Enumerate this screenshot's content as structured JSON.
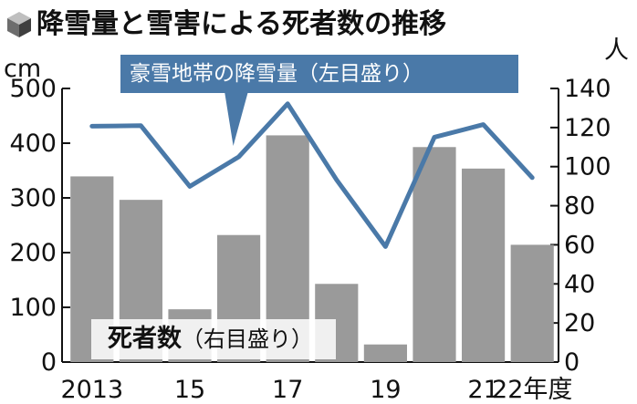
{
  "title": "降雪量と雪害による死者数の推移",
  "colors": {
    "bar": "#9a9a9a",
    "line": "#4a79a8",
    "callout_bg": "#4a79a8",
    "axis": "#111111",
    "text": "#111111"
  },
  "chart_data": {
    "type": "bar+line",
    "left_axis": {
      "unit": "cm",
      "ylim": [
        0,
        500
      ],
      "ticks": [
        "0",
        "100",
        "200",
        "300",
        "400",
        "500"
      ]
    },
    "right_axis": {
      "unit": "人",
      "ylim": [
        0,
        140
      ],
      "ticks": [
        "0",
        "20",
        "40",
        "60",
        "80",
        "100",
        "120",
        "140"
      ]
    },
    "x": [
      2013,
      2014,
      2015,
      2016,
      2017,
      2018,
      2019,
      2020,
      2021,
      2022
    ],
    "x_tick_labels": [
      "2013",
      "",
      "15",
      "",
      "17",
      "",
      "19",
      "",
      "21",
      "22年度"
    ],
    "series": [
      {
        "name": "豪雪地帯の降雪量",
        "name_suffix": "（左目盛り）",
        "type": "line",
        "axis": "left",
        "values": [
          431,
          432,
          321,
          375,
          472,
          333,
          211,
          411,
          434,
          337
        ]
      },
      {
        "name": "死者数",
        "name_suffix": "（右目盛り）",
        "type": "bar",
        "axis": "right",
        "values": [
          95,
          83,
          27,
          65,
          116,
          40,
          9,
          110,
          99,
          60
        ]
      }
    ],
    "grid": false
  }
}
